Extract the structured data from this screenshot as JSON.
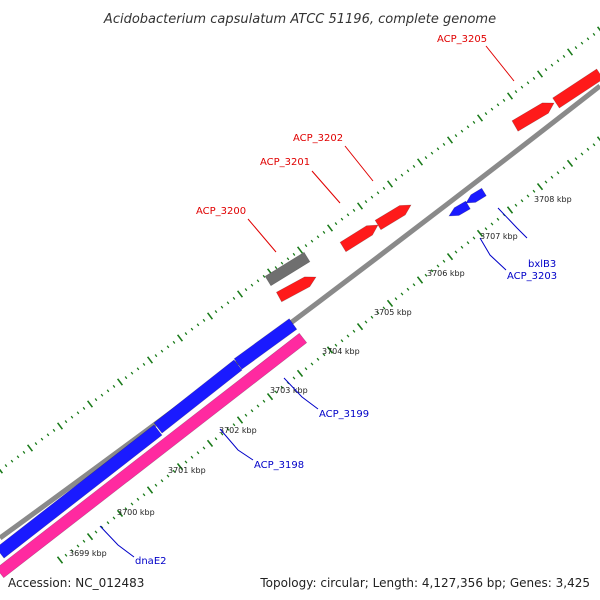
{
  "title": "Acidobacterium capsulatum ATCC 51196, complete genome",
  "footer": {
    "accession": "Accession: NC_012483",
    "summary": "Topology: circular; Length: 4,127,356 bp; Genes: 3,425"
  },
  "colors": {
    "backbone": "#8a8a8a",
    "forward_gene": "#ff1a1a",
    "reverse_gene": "#1a1aff",
    "rna_gene": "#ff2aa0",
    "other_gene": "#6f6f6f",
    "tick": "#1a7a1a",
    "forward_label": "#e00000",
    "reverse_label": "#0000c8"
  },
  "scale_ticks": [
    {
      "label": "3699 kbp"
    },
    {
      "label": "3700 kbp"
    },
    {
      "label": "3701 kbp"
    },
    {
      "label": "3702 kbp"
    },
    {
      "label": "3703 kbp"
    },
    {
      "label": "3704 kbp"
    },
    {
      "label": "3705 kbp"
    },
    {
      "label": "3706 kbp"
    },
    {
      "label": "3707 kbp"
    },
    {
      "label": "3708 kbp"
    }
  ],
  "gene_labels": [
    {
      "id": "ACP_3205",
      "strand": "forward"
    },
    {
      "id": "ACP_3202",
      "strand": "forward"
    },
    {
      "id": "ACP_3201",
      "strand": "forward"
    },
    {
      "id": "ACP_3200",
      "strand": "forward"
    },
    {
      "id": "bxlB3",
      "strand": "reverse"
    },
    {
      "id": "ACP_3203",
      "strand": "reverse"
    },
    {
      "id": "ACP_3199",
      "strand": "reverse"
    },
    {
      "id": "ACP_3198",
      "strand": "reverse"
    },
    {
      "id": "dnaE2",
      "strand": "reverse"
    }
  ]
}
